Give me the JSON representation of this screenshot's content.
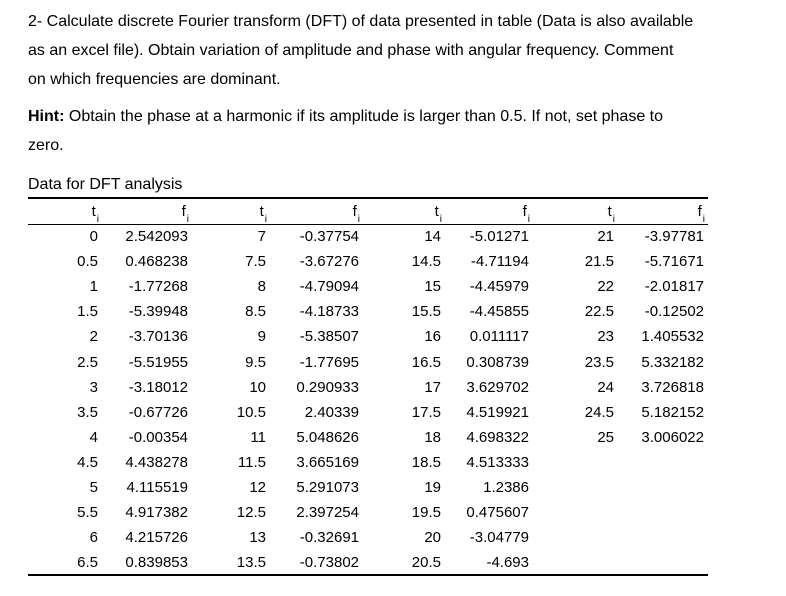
{
  "problem": {
    "lines": [
      "2- Calculate discrete Fourier transform (DFT) of data presented in table (Data is also available",
      "as an excel file). Obtain variation of amplitude and phase with angular frequency. Comment",
      "on which frequencies are dominant."
    ]
  },
  "hint": {
    "label": "Hint:",
    "line1_rest": " Obtain the phase at a harmonic if its amplitude is larger than 0.5. If not, set phase to",
    "line2": "zero."
  },
  "table": {
    "caption": "Data for DFT analysis",
    "header": {
      "cols": [
        {
          "label": "t",
          "sub": "i"
        },
        {
          "label": "f",
          "sub": "i"
        },
        {
          "label": "t",
          "sub": "i"
        },
        {
          "label": "f",
          "sub": "i"
        },
        {
          "label": "t",
          "sub": "i"
        },
        {
          "label": "f",
          "sub": "i"
        },
        {
          "label": "t",
          "sub": "i"
        },
        {
          "label": "f",
          "sub": "i"
        }
      ]
    },
    "rows": [
      [
        "0",
        "2.542093",
        "7",
        "-0.37754",
        "14",
        "-5.01271",
        "21",
        "-3.97781"
      ],
      [
        "0.5",
        "0.468238",
        "7.5",
        "-3.67276",
        "14.5",
        "-4.71194",
        "21.5",
        "-5.71671"
      ],
      [
        "1",
        "-1.77268",
        "8",
        "-4.79094",
        "15",
        "-4.45979",
        "22",
        "-2.01817"
      ],
      [
        "1.5",
        "-5.39948",
        "8.5",
        "-4.18733",
        "15.5",
        "-4.45855",
        "22.5",
        "-0.12502"
      ],
      [
        "2",
        "-3.70136",
        "9",
        "-5.38507",
        "16",
        "0.011117",
        "23",
        "1.405532"
      ],
      [
        "2.5",
        "-5.51955",
        "9.5",
        "-1.77695",
        "16.5",
        "0.308739",
        "23.5",
        "5.332182"
      ],
      [
        "3",
        "-3.18012",
        "10",
        "0.290933",
        "17",
        "3.629702",
        "24",
        "3.726818"
      ],
      [
        "3.5",
        "-0.67726",
        "10.5",
        "2.40339",
        "17.5",
        "4.519921",
        "24.5",
        "5.182152"
      ],
      [
        "4",
        "-0.00354",
        "11",
        "5.048626",
        "18",
        "4.698322",
        "25",
        "3.006022"
      ],
      [
        "4.5",
        "4.438278",
        "11.5",
        "3.665169",
        "18.5",
        "4.513333",
        "",
        ""
      ],
      [
        "5",
        "4.115519",
        "12",
        "5.291073",
        "19",
        "1.2386",
        "",
        ""
      ],
      [
        "5.5",
        "4.917382",
        "12.5",
        "2.397254",
        "19.5",
        "0.475607",
        "",
        ""
      ],
      [
        "6",
        "4.215726",
        "13",
        "-0.32691",
        "20",
        "-3.04779",
        "",
        ""
      ],
      [
        "6.5",
        "0.839853",
        "13.5",
        "-0.73802",
        "20.5",
        "-4.693",
        "",
        ""
      ]
    ]
  }
}
